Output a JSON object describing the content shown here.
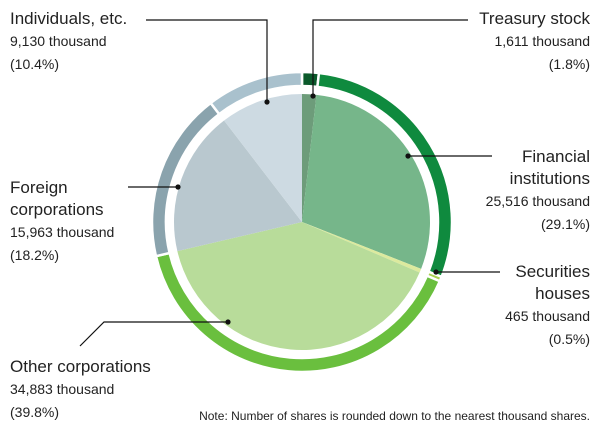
{
  "chart_data": {
    "type": "pie",
    "categories": [
      "Treasury stock",
      "Financial institutions",
      "Securities houses",
      "Other corporations",
      "Foreign corporations",
      "Individuals, etc."
    ],
    "values": [
      1.8,
      29.1,
      0.5,
      39.8,
      18.2,
      10.4
    ],
    "value_labels": [
      "(1.8%)",
      "(29.1%)",
      "(0.5%)",
      "(39.8%)",
      "(18.2%)",
      "(10.4%)"
    ],
    "shares": {
      "values": [
        1611,
        25516,
        465,
        34883,
        15963,
        9130
      ],
      "value_labels": [
        "1,611 thousand",
        "25,516 thousand",
        "465 thousand",
        "34,883 thousand",
        "15,963 thousand",
        "9,130 thousand"
      ]
    },
    "colors": [
      "#6d9c7a",
      "#76b68a",
      "#dcea9e",
      "#b8dc9a",
      "#b9c8cf",
      "#cddae2"
    ],
    "ring_colors": [
      "#0b5a2b",
      "#0f8a3e",
      "#a8d050",
      "#6abf3e",
      "#8aa3ad",
      "#a9c1cd"
    ],
    "note": "Note: Number of shares is rounded down to the nearest thousand shares."
  }
}
